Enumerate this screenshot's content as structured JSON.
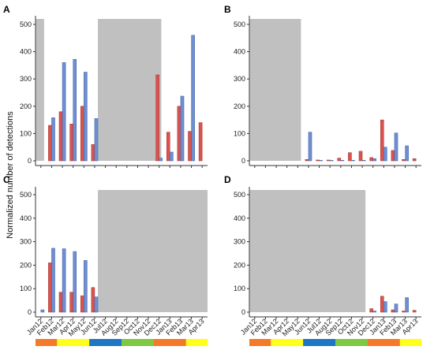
{
  "ylabel": "Normalized number of detections",
  "colors": {
    "series_red": "#d9534f",
    "series_blue": "#6f8fd0",
    "shade": "#c0c0c0",
    "season_orange": "#f47a2a",
    "season_yellow": "#ffff1a",
    "season_blue": "#1f77c4",
    "season_green": "#7fc844"
  },
  "season_bar": [
    "orange",
    "orange",
    "yellow",
    "yellow",
    "yellow",
    "blue",
    "blue",
    "blue",
    "green",
    "green",
    "green",
    "orange",
    "orange",
    "orange",
    "yellow",
    "yellow"
  ],
  "chart_data": [
    {
      "panel": "A",
      "type": "bar",
      "categories": [
        "Jan12",
        "Feb12",
        "Mar12",
        "Apr12",
        "May12",
        "Jun12",
        "Jul12",
        "Aug12",
        "Sep12",
        "Oct12",
        "Nov12",
        "Dec12",
        "Jan13",
        "Feb13",
        "Mar13",
        "Apr13"
      ],
      "ylim": [
        0,
        520
      ],
      "yticks": [
        0,
        100,
        200,
        300,
        400,
        500
      ],
      "shaded": [
        [
          -0.45,
          0.3
        ],
        [
          5.3,
          11.2
        ]
      ],
      "series": [
        {
          "color": "red",
          "values": [
            null,
            130,
            180,
            135,
            200,
            60,
            null,
            null,
            null,
            null,
            null,
            315,
            105,
            200,
            108,
            140
          ]
        },
        {
          "color": "blue",
          "values": [
            null,
            158,
            360,
            372,
            325,
            155,
            null,
            null,
            null,
            null,
            null,
            10,
            32,
            237,
            460,
            null
          ]
        }
      ]
    },
    {
      "panel": "B",
      "type": "bar",
      "categories": [
        "Jan12",
        "Feb12",
        "Mar12",
        "Apr12",
        "May12",
        "Jun12",
        "Jul12",
        "Aug12",
        "Sep12",
        "Oct12",
        "Nov12",
        "Dec12",
        "Jan13",
        "Feb13",
        "Mar13",
        "Apr13"
      ],
      "ylim": [
        0,
        520
      ],
      "yticks": [
        0,
        100,
        200,
        300,
        400,
        500
      ],
      "shaded": [
        [
          -0.45,
          4.3
        ]
      ],
      "series": [
        {
          "color": "red",
          "values": [
            null,
            null,
            null,
            null,
            null,
            5,
            3,
            3,
            10,
            30,
            35,
            12,
            150,
            38,
            5,
            8
          ]
        },
        {
          "color": "blue",
          "values": [
            null,
            null,
            null,
            null,
            null,
            105,
            2,
            2,
            2,
            2,
            2,
            8,
            50,
            102,
            55,
            null
          ]
        }
      ]
    },
    {
      "panel": "C",
      "type": "bar",
      "categories": [
        "Jan12",
        "Feb12",
        "Mar12",
        "Apr12",
        "May12",
        "Jun12",
        "Jul12",
        "Aug12",
        "Sep12",
        "Oct12",
        "Nov12",
        "Dec12",
        "Jan13",
        "Feb13",
        "Mar13",
        "Apr13"
      ],
      "ylim": [
        0,
        520
      ],
      "yticks": [
        0,
        100,
        200,
        300,
        400,
        500
      ],
      "shaded": [
        [
          5.3,
          15.5
        ]
      ],
      "series": [
        {
          "color": "red",
          "values": [
            null,
            210,
            85,
            85,
            70,
            105,
            null,
            null,
            null,
            null,
            null,
            null,
            null,
            null,
            null,
            null
          ]
        },
        {
          "color": "blue",
          "values": [
            10,
            272,
            270,
            258,
            220,
            65,
            null,
            null,
            null,
            null,
            null,
            null,
            null,
            null,
            null,
            null
          ]
        }
      ]
    },
    {
      "panel": "D",
      "type": "bar",
      "categories": [
        "Jan12",
        "Feb12",
        "Mar12",
        "Apr12",
        "May12",
        "Jun12",
        "Jul12",
        "Aug12",
        "Sep12",
        "Oct12",
        "Nov12",
        "Dec12",
        "Jan13",
        "Feb13",
        "Mar13",
        "Apr13"
      ],
      "ylim": [
        0,
        520
      ],
      "yticks": [
        0,
        100,
        200,
        300,
        400,
        500
      ],
      "shaded": [
        [
          -0.45,
          10.3
        ]
      ],
      "series": [
        {
          "color": "red",
          "values": [
            null,
            null,
            null,
            null,
            null,
            null,
            null,
            null,
            null,
            null,
            null,
            15,
            68,
            10,
            5,
            8
          ]
        },
        {
          "color": "blue",
          "values": [
            null,
            null,
            null,
            null,
            null,
            null,
            null,
            null,
            null,
            null,
            null,
            5,
            45,
            35,
            62,
            null
          ]
        }
      ]
    }
  ]
}
